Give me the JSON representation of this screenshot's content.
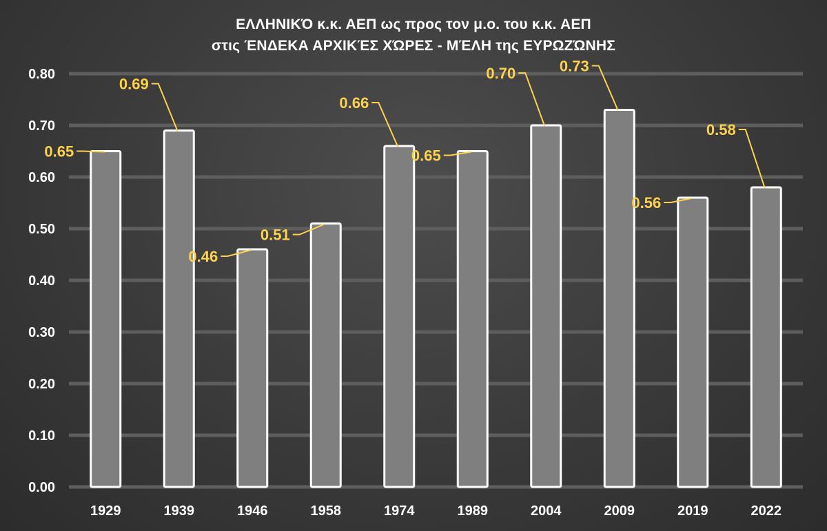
{
  "title_lines": [
    "ΕΛΛΗΝΙΚΌ κ.κ. ΑΕΠ ως προς τον μ.ο. του κ.κ. ΑΕΠ",
    "στις ΈΝΔΕΚΑ ΑΡΧΙΚΈΣ ΧΏΡΕΣ - ΜΈΛΗ της ΕΥΡΩΖΏΝΗΣ"
  ],
  "colors": {
    "bar_fill": "#7f7f7f",
    "bar_stroke": "#ffffff",
    "grid": "#5e5e5e",
    "label": "#ffd24d",
    "text": "#ffffff"
  },
  "chart_data": {
    "type": "bar",
    "categories": [
      "1929",
      "1939",
      "1946",
      "1958",
      "1974",
      "1989",
      "2004",
      "2009",
      "2019",
      "2022"
    ],
    "values": [
      0.65,
      0.69,
      0.46,
      0.51,
      0.66,
      0.65,
      0.7,
      0.73,
      0.56,
      0.58
    ],
    "data_labels": [
      "0.65",
      "0.69",
      "0.46",
      "0.51",
      "0.66",
      "0.65",
      "0.70",
      "0.73",
      "0.56",
      "0.58"
    ],
    "ylim": [
      0,
      0.8
    ],
    "yticks": [
      "0.00",
      "0.10",
      "0.20",
      "0.30",
      "0.40",
      "0.50",
      "0.60",
      "0.70",
      "0.80"
    ],
    "grid": true,
    "legend": "none"
  }
}
